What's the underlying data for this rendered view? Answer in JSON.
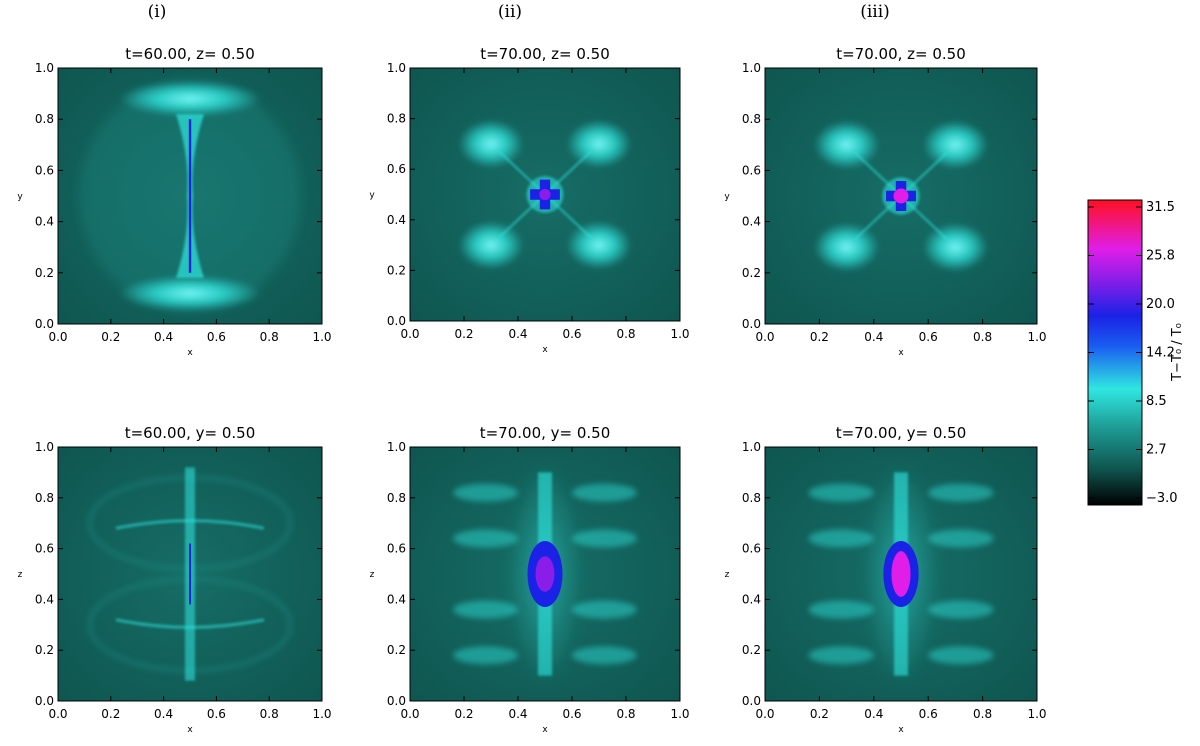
{
  "figure": {
    "column_labels": [
      "(i)",
      "(ii)",
      "(iii)"
    ],
    "panels": [
      {
        "id": "i-top",
        "title": "t=60.00, z= 0.50",
        "xlabel": "x",
        "ylabel": "y",
        "variant": "xy1"
      },
      {
        "id": "ii-top",
        "title": "t=70.00, z= 0.50",
        "xlabel": "x",
        "ylabel": "y",
        "variant": "xy2"
      },
      {
        "id": "iii-top",
        "title": "t=70.00, z= 0.50",
        "xlabel": "x",
        "ylabel": "y",
        "variant": "xy3"
      },
      {
        "id": "i-bottom",
        "title": "t=60.00, y= 0.50",
        "xlabel": "x",
        "ylabel": "z",
        "variant": "xz1"
      },
      {
        "id": "ii-bottom",
        "title": "t=70.00, y= 0.50",
        "xlabel": "x",
        "ylabel": "z",
        "variant": "xz2"
      },
      {
        "id": "iii-bottom",
        "title": "t=70.00, y= 0.50",
        "xlabel": "x",
        "ylabel": "z",
        "variant": "xz3"
      }
    ],
    "axis_ticks": [
      "0.0",
      "0.2",
      "0.4",
      "0.6",
      "0.8",
      "1.0"
    ],
    "colorbar": {
      "label": "T−T₀ / T₀",
      "ticks": [
        "31.5",
        "25.8",
        "20.0",
        "14.2",
        "8.5",
        "2.7",
        "−3.0"
      ],
      "range": [
        -3.0,
        31.5
      ]
    },
    "colors": {
      "background": "#0f5650",
      "low": "#000000",
      "cyan": "#2fe7e0",
      "blue": "#1a22e6",
      "magenta": "#e01ee8",
      "red": "#ff1020"
    }
  }
}
